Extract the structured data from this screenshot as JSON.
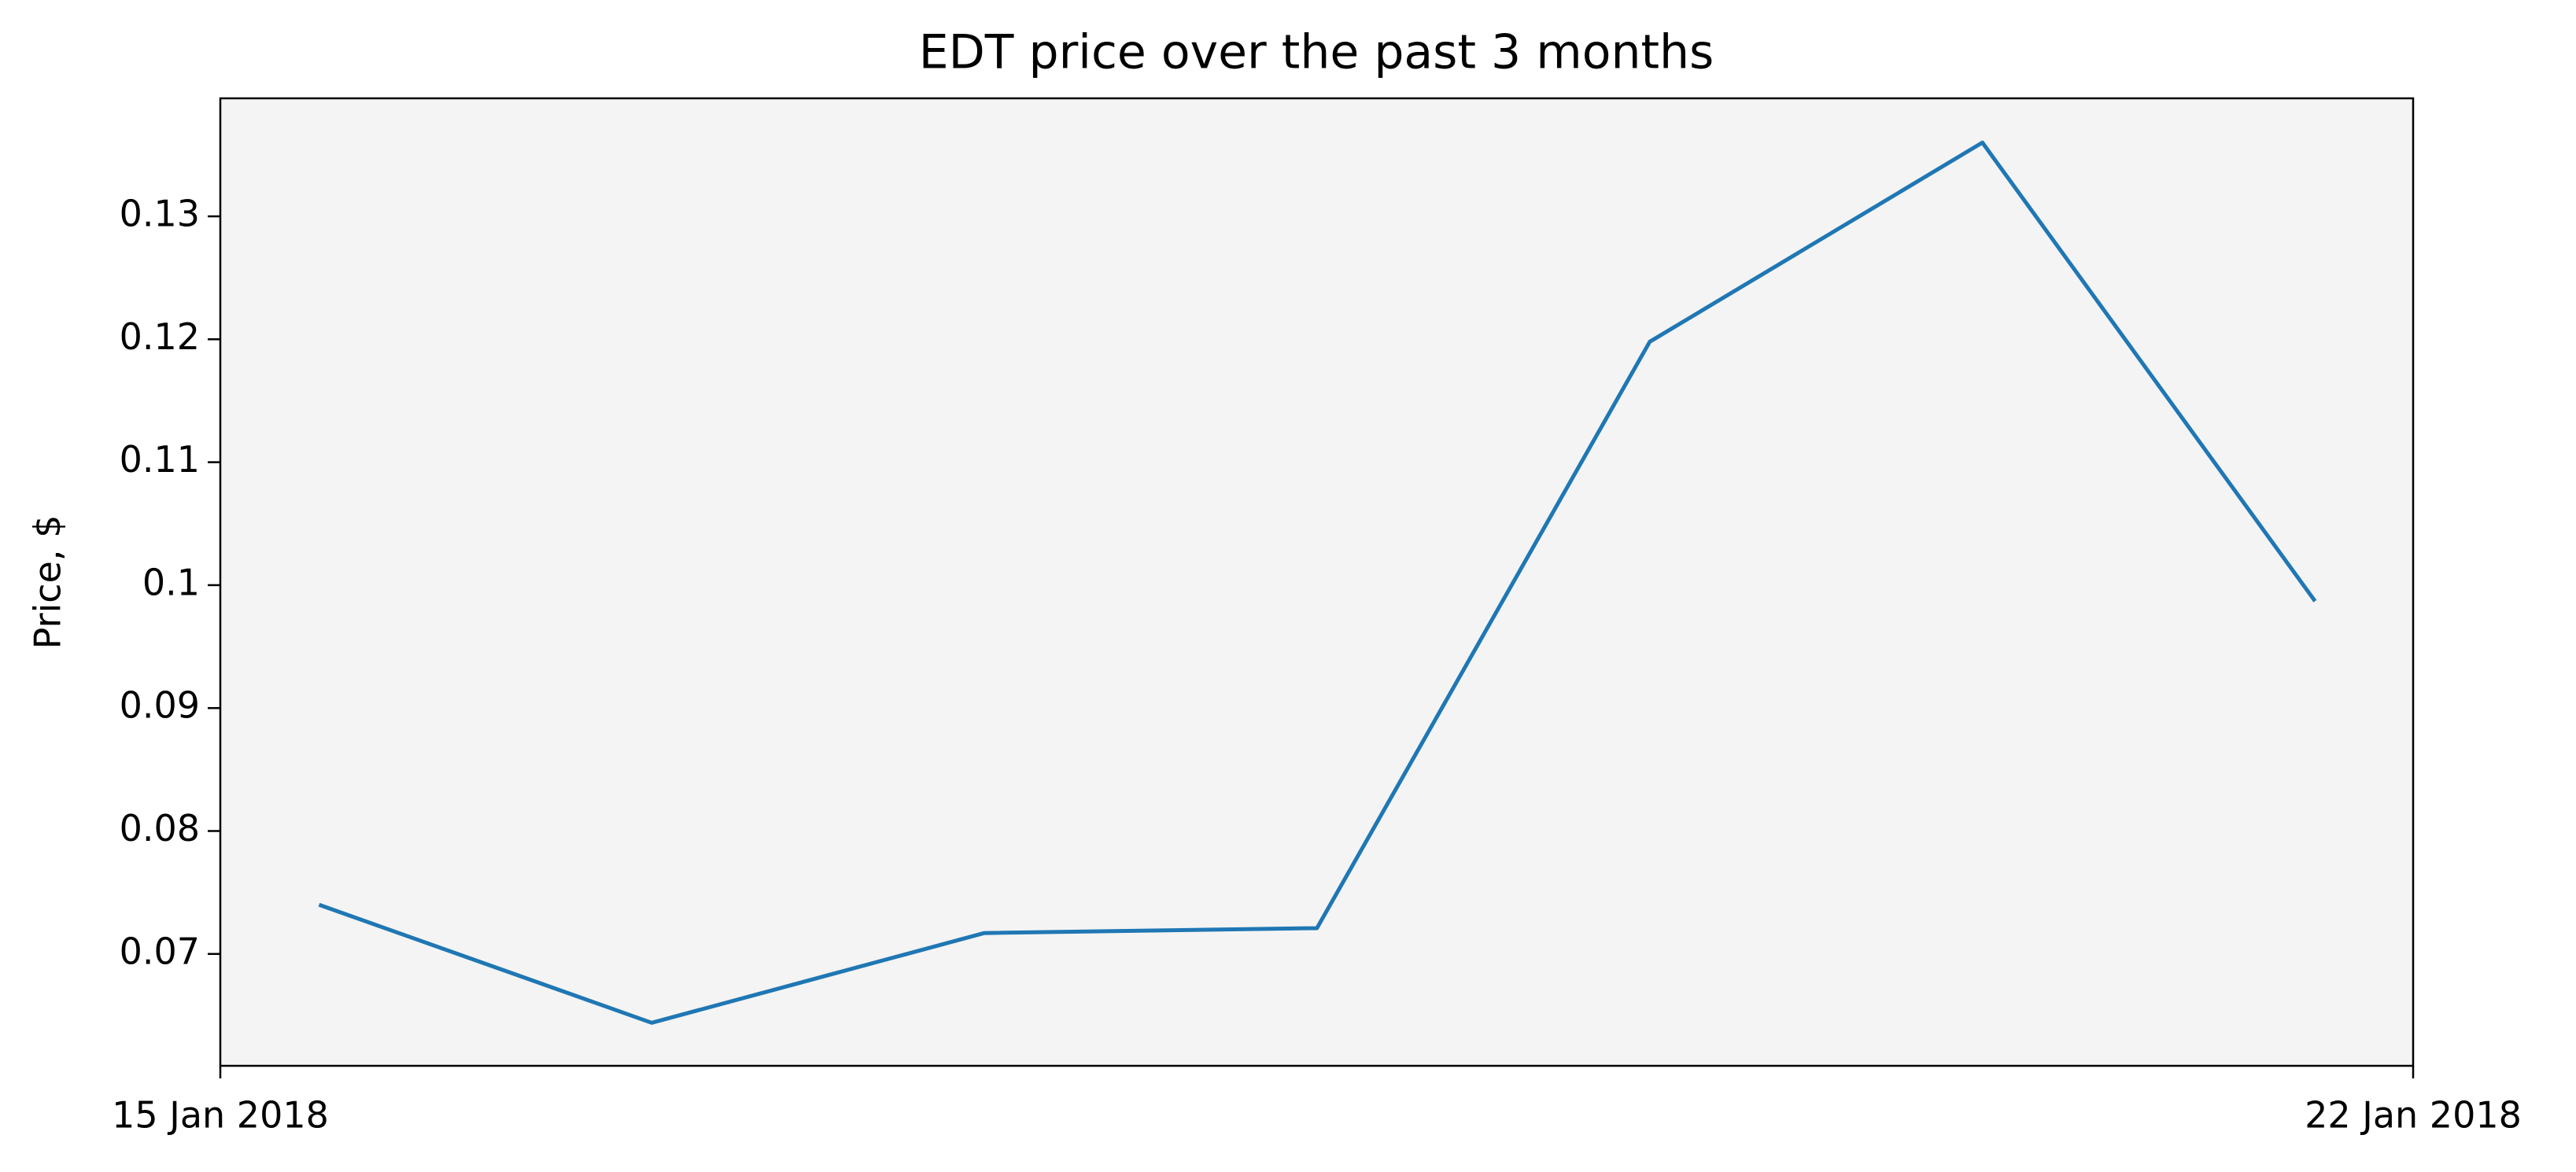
{
  "chart_data": {
    "type": "line",
    "title": "EDT price over the past 3 months",
    "y_label": "Price, $",
    "x": [
      "2018-01-15T07:34",
      "2018-01-16T09:03",
      "2018-01-17T10:32",
      "2018-01-18T12:01",
      "2018-01-19T13:31",
      "2018-01-20T15:00",
      "2018-01-21T16:29"
    ],
    "series": [
      {
        "color": "#1f77b4",
        "values": [
          0.074,
          0.0644,
          0.0717,
          0.0721,
          0.1198,
          0.136,
          0.0987
        ]
      }
    ],
    "xlim": [
      "2018-01-15T00:00",
      "2018-01-22T00:00"
    ],
    "xticks": [
      {
        "value": "2018-01-15T00:00",
        "label": "15 Jan 2018"
      },
      {
        "value": "2018-01-22T00:00",
        "label": "22 Jan 2018"
      }
    ],
    "ylim": [
      0.0609,
      0.1396
    ],
    "yticks": [
      0.07,
      0.08,
      0.09,
      0.1,
      0.11,
      0.12,
      0.13
    ],
    "background": "#f4f4f4",
    "grid": false
  }
}
